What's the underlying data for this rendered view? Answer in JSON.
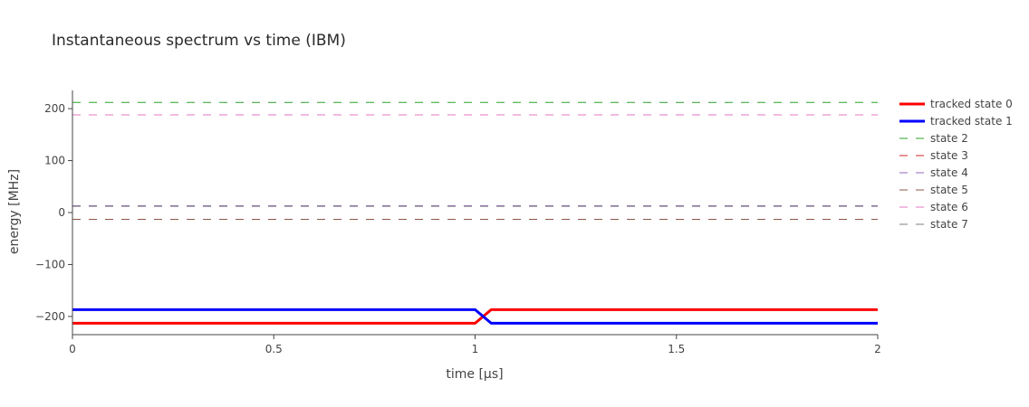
{
  "chart_data": {
    "type": "line",
    "title": "Instantaneous spectrum vs time (IBM)",
    "xlabel": "time [μs]",
    "ylabel": "energy [MHz]",
    "xlim": [
      0,
      2
    ],
    "ylim": [
      -235,
      235
    ],
    "x_ticks": [
      {
        "value": 0,
        "label": "0"
      },
      {
        "value": 0.5,
        "label": "0.5"
      },
      {
        "value": 1,
        "label": "1"
      },
      {
        "value": 1.5,
        "label": "1.5"
      },
      {
        "value": 2,
        "label": "2"
      }
    ],
    "y_ticks": [
      {
        "value": 200,
        "label": "200"
      },
      {
        "value": 100,
        "label": "100"
      },
      {
        "value": 0,
        "label": "0"
      },
      {
        "value": -100,
        "label": "−100"
      },
      {
        "value": -200,
        "label": "−200"
      }
    ],
    "grid": false,
    "legend_position": "right",
    "series": [
      {
        "name": "tracked state 0",
        "color": "#ff0000",
        "dash": "solid",
        "width": 3,
        "x": [
          0,
          1.0,
          1.04,
          2
        ],
        "y": [
          -213,
          -213,
          -187,
          -187
        ]
      },
      {
        "name": "tracked state 1",
        "color": "#0000ff",
        "dash": "solid",
        "width": 3,
        "x": [
          0,
          1.0,
          1.04,
          2
        ],
        "y": [
          -187,
          -187,
          -213,
          -213
        ]
      },
      {
        "name": "state 2",
        "color": "#2ca02c",
        "dash": "dash",
        "width": 1,
        "x": [
          0,
          2
        ],
        "y": [
          212,
          212
        ]
      },
      {
        "name": "state 3",
        "color": "#d62728",
        "dash": "dash",
        "width": 1,
        "x": [
          0,
          2
        ],
        "y": [
          -13,
          -13
        ]
      },
      {
        "name": "state 4",
        "color": "#9467bd",
        "dash": "dash",
        "width": 1,
        "x": [
          0,
          2
        ],
        "y": [
          13,
          13
        ]
      },
      {
        "name": "state 5",
        "color": "#8c564b",
        "dash": "dash",
        "width": 1,
        "x": [
          0,
          2
        ],
        "y": [
          -13,
          -13
        ]
      },
      {
        "name": "state 6",
        "color": "#e377c2",
        "dash": "dash",
        "width": 1,
        "x": [
          0,
          2
        ],
        "y": [
          188,
          188
        ]
      },
      {
        "name": "state 7",
        "color": "#7f7f7f",
        "dash": "dash",
        "width": 1,
        "x": [
          0,
          2
        ],
        "y": [
          12,
          12
        ]
      }
    ]
  }
}
